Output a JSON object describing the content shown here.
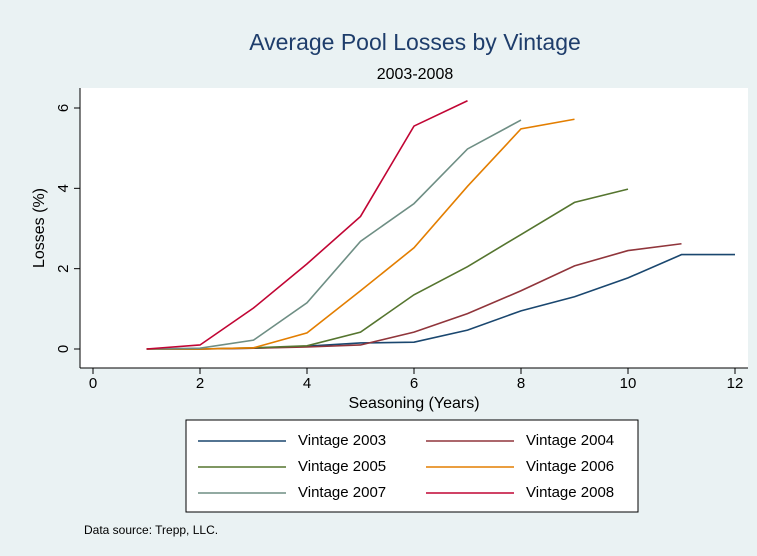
{
  "chart_data": {
    "type": "line",
    "title": "Average Pool Losses by Vintage",
    "subtitle": "2003-2008",
    "x_label": "Seasoning (Years)",
    "y_label": "Losses (%)",
    "note": "Data source: Trepp, LLC.",
    "x": [
      1,
      2,
      3,
      4,
      5,
      6,
      7,
      8,
      9,
      10,
      11,
      12
    ],
    "series": [
      {
        "name": "Vintage 2003",
        "color": "#1a476f",
        "values": [
          0,
          0,
          0.02,
          0.07,
          0.15,
          0.17,
          0.47,
          0.95,
          1.3,
          1.77,
          2.35,
          2.35
        ]
      },
      {
        "name": "Vintage 2004",
        "color": "#90353b",
        "values": [
          0,
          0,
          0.02,
          0.05,
          0.1,
          0.42,
          0.88,
          1.45,
          2.07,
          2.45,
          2.62,
          null
        ]
      },
      {
        "name": "Vintage 2005",
        "color": "#55752f",
        "values": [
          0,
          0,
          0.03,
          0.08,
          0.42,
          1.35,
          2.05,
          2.85,
          3.65,
          3.98,
          null,
          null
        ]
      },
      {
        "name": "Vintage 2006",
        "color": "#e37e00",
        "values": [
          0,
          0,
          0.03,
          0.4,
          1.45,
          2.52,
          4.05,
          5.48,
          5.72,
          null,
          null,
          null
        ]
      },
      {
        "name": "Vintage 2007",
        "color": "#6e8e84",
        "values": [
          0,
          0.02,
          0.22,
          1.15,
          2.68,
          3.62,
          4.98,
          5.7,
          null,
          null,
          null,
          null
        ]
      },
      {
        "name": "Vintage 2008",
        "color": "#c10534",
        "values": [
          0,
          0.1,
          1.02,
          2.12,
          3.3,
          5.55,
          6.18,
          null,
          null,
          null,
          null,
          null
        ]
      }
    ],
    "xlim": [
      0,
      12
    ],
    "xticks": [
      0,
      2,
      4,
      6,
      8,
      10,
      12
    ],
    "ylim": [
      0,
      6
    ],
    "yticks": [
      0,
      2,
      4,
      6
    ],
    "grid": false
  }
}
